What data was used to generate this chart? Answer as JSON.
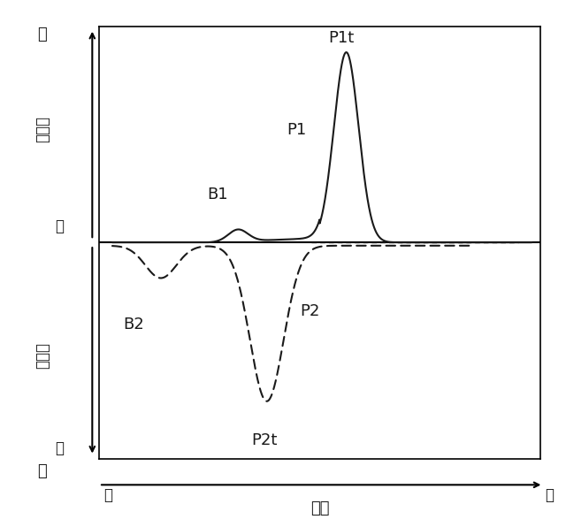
{
  "background_color": "#ffffff",
  "line_color": "#1a1a1a",
  "dashed_color": "#1a1a1a",
  "label_P1t": "P1t",
  "label_P1": "P1",
  "label_B1": "B1",
  "label_P2t": "P2t",
  "label_P2": "P2",
  "label_B2": "B2",
  "y_label_top": "極",
  "y_label_exo": "発炱量",
  "y_label_low_upper": "低",
  "y_label_endo": "吸熱量",
  "y_label_low_lower": "低",
  "y_label_bottom": "極",
  "x_label_low": "低",
  "x_label_high": "高",
  "x_label_temp": "温度"
}
